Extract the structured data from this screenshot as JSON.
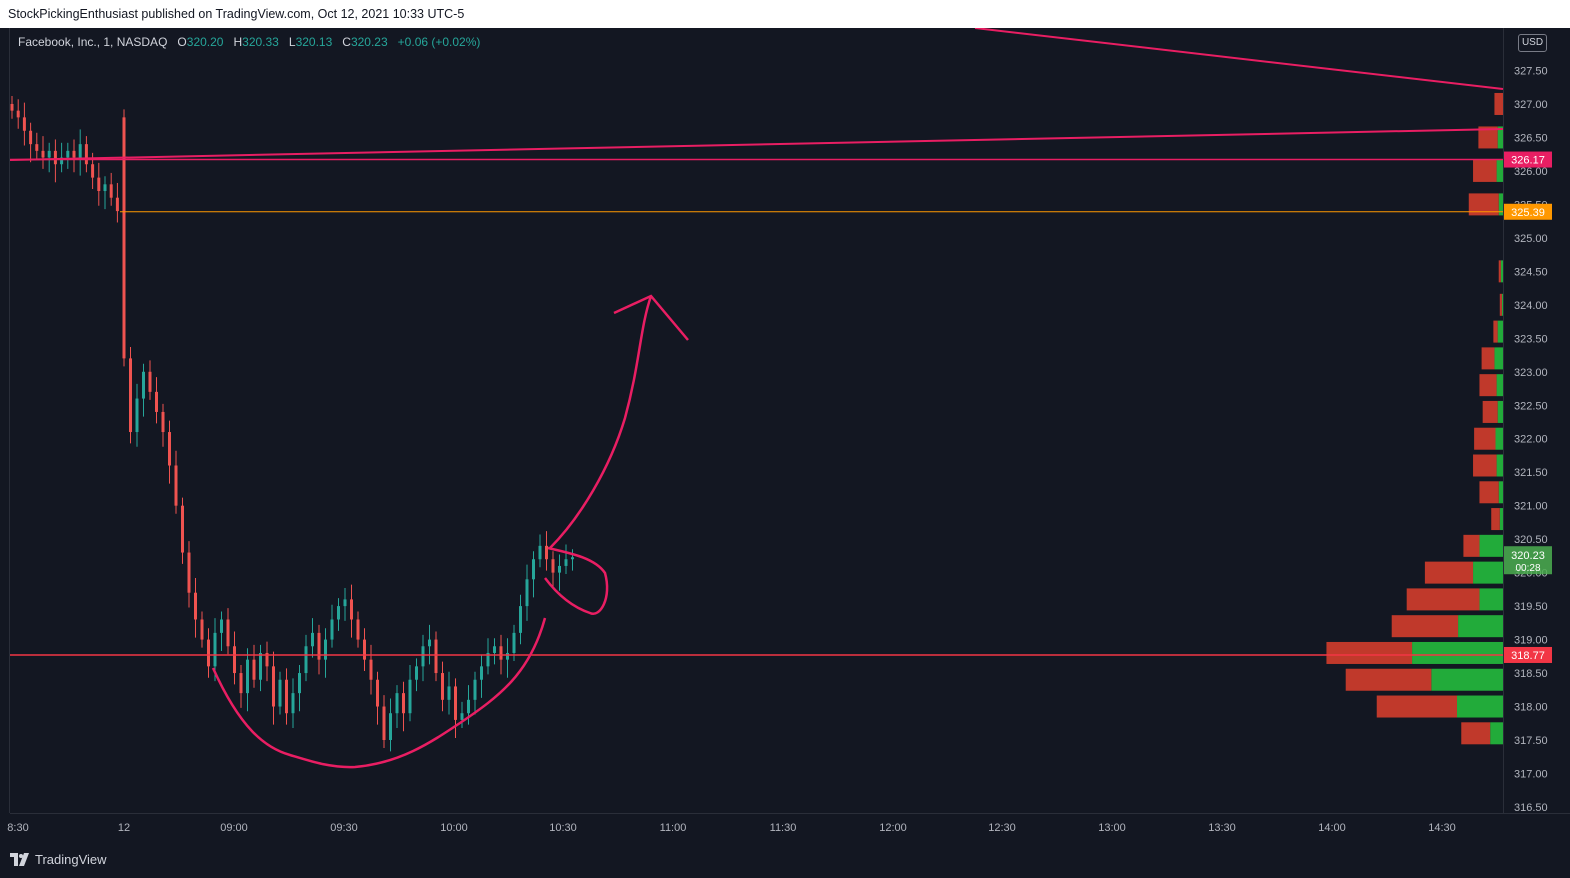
{
  "header": {
    "published_by": "StockPickingEnthusiast published on TradingView.com, Oct 12, 2021 10:33 UTC-5"
  },
  "legend": {
    "symbol": "Facebook, Inc., 1, NASDAQ",
    "o_label": "O",
    "o_value": "320.20",
    "h_label": "H",
    "h_value": "320.33",
    "l_label": "L",
    "l_value": "320.13",
    "c_label": "C",
    "c_value": "320.23",
    "change": "+0.06 (+0.02%)"
  },
  "currency_button": "USD",
  "footer": {
    "brand": "TradingView"
  },
  "colors": {
    "background": "#131722",
    "up": "#26a69a",
    "down": "#ef5350",
    "drawing": "#e91e63",
    "support": "#f23645",
    "level_orange": "#ff9800",
    "vp_up": "#22ab3a",
    "vp_down": "#c0392b"
  },
  "chart_data": {
    "type": "candlestick",
    "y_ticks": [
      "327.50",
      "327.00",
      "326.50",
      "326.00",
      "325.50",
      "325.00",
      "324.50",
      "324.00",
      "323.50",
      "323.00",
      "322.50",
      "322.00",
      "321.50",
      "321.00",
      "320.50",
      "320.00",
      "319.50",
      "319.00",
      "318.50",
      "318.00",
      "317.50",
      "317.00",
      "316.50"
    ],
    "ylim": [
      316.5,
      327.5
    ],
    "x_ticks": [
      "8:30",
      "12",
      "09:00",
      "09:30",
      "10:00",
      "10:30",
      "11:00",
      "11:30",
      "12:00",
      "12:30",
      "13:00",
      "13:30",
      "14:00",
      "14:30"
    ],
    "price_tags": [
      {
        "price": 326.17,
        "label": "326.17",
        "color": "#e91e63"
      },
      {
        "price": 325.39,
        "label": "325.39",
        "color": "#ff9800"
      },
      {
        "price": 318.77,
        "label": "318.77",
        "color": "#f23645"
      }
    ],
    "last_price": {
      "label": "320.23",
      "countdown": "00:28"
    },
    "prev_session_closes": [
      326.9,
      326.8,
      326.6,
      326.4,
      326.3,
      326.2,
      326.3,
      326.1,
      326.2,
      326.3,
      326.2,
      326.4,
      326.1,
      325.9,
      325.7,
      325.8,
      325.6,
      325.4
    ],
    "session_closes": [
      323.2,
      322.1,
      322.6,
      323.0,
      322.7,
      322.4,
      322.1,
      321.6,
      321.0,
      320.3,
      319.7,
      319.3,
      319.0,
      318.6,
      319.1,
      319.3,
      318.9,
      318.5,
      318.2,
      318.7,
      318.4,
      318.8,
      318.6,
      318.0,
      318.4,
      317.9,
      318.2,
      318.5,
      318.9,
      319.1,
      318.7,
      319.0,
      319.3,
      319.5,
      319.6,
      319.3,
      319.0,
      318.7,
      318.4,
      318.0,
      317.5,
      317.9,
      318.2,
      317.9,
      318.4,
      318.6,
      318.9,
      319.0,
      318.5,
      318.1,
      318.3,
      317.8,
      317.9,
      318.1,
      318.4,
      318.6,
      318.8,
      318.9,
      318.7,
      318.8,
      319.1,
      319.5,
      319.9,
      320.2,
      320.4,
      320.2,
      320.0,
      320.1,
      320.2,
      320.23
    ],
    "volume_profile": [
      {
        "price": 327.0,
        "up": 0,
        "down": 8
      },
      {
        "price": 326.5,
        "up": 5,
        "down": 18
      },
      {
        "price": 326.0,
        "up": 6,
        "down": 22
      },
      {
        "price": 325.5,
        "up": 4,
        "down": 28
      },
      {
        "price": 324.5,
        "up": 2,
        "down": 2
      },
      {
        "price": 324.0,
        "up": 1,
        "down": 2
      },
      {
        "price": 323.6,
        "up": 5,
        "down": 4
      },
      {
        "price": 323.2,
        "up": 8,
        "down": 12
      },
      {
        "price": 322.8,
        "up": 6,
        "down": 16
      },
      {
        "price": 322.4,
        "up": 5,
        "down": 14
      },
      {
        "price": 322.0,
        "up": 7,
        "down": 20
      },
      {
        "price": 321.6,
        "up": 6,
        "down": 22
      },
      {
        "price": 321.2,
        "up": 4,
        "down": 18
      },
      {
        "price": 320.8,
        "up": 3,
        "down": 8
      },
      {
        "price": 320.4,
        "up": 22,
        "down": 15
      },
      {
        "price": 320.0,
        "up": 28,
        "down": 45
      },
      {
        "price": 319.6,
        "up": 22,
        "down": 68
      },
      {
        "price": 319.2,
        "up": 42,
        "down": 62
      },
      {
        "price": 318.8,
        "up": 85,
        "down": 80
      },
      {
        "price": 318.4,
        "up": 67,
        "down": 80
      },
      {
        "price": 318.0,
        "up": 43,
        "down": 75
      },
      {
        "price": 317.6,
        "up": 12,
        "down": 27
      }
    ]
  }
}
